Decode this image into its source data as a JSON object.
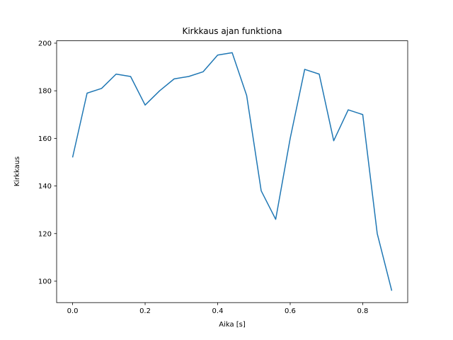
{
  "figure": {
    "background": "#ffffff"
  },
  "chart_data": {
    "type": "line",
    "title": "Kirkkaus ajan funktiona",
    "xlabel": "Aika [s]",
    "ylabel": "Kirkkaus",
    "x": [
      0.0,
      0.04,
      0.08,
      0.12,
      0.16,
      0.2,
      0.24,
      0.28,
      0.32,
      0.36,
      0.4,
      0.44,
      0.48,
      0.52,
      0.56,
      0.6,
      0.64,
      0.68,
      0.72,
      0.76,
      0.8,
      0.84,
      0.88
    ],
    "y": [
      152,
      179,
      181,
      187,
      186,
      174,
      180,
      185,
      186,
      188,
      195,
      196,
      178,
      138,
      126,
      160,
      189,
      187,
      159,
      172,
      170,
      120,
      96
    ],
    "xlim": [
      -0.044,
      0.924
    ],
    "ylim": [
      91,
      201
    ],
    "xticks": [
      0.0,
      0.2,
      0.4,
      0.6,
      0.8
    ],
    "yticks": [
      100,
      120,
      140,
      160,
      180,
      200
    ],
    "line_color": "#1f77b4",
    "axis_color": "#000000",
    "grid": false,
    "legend_position": "none"
  }
}
